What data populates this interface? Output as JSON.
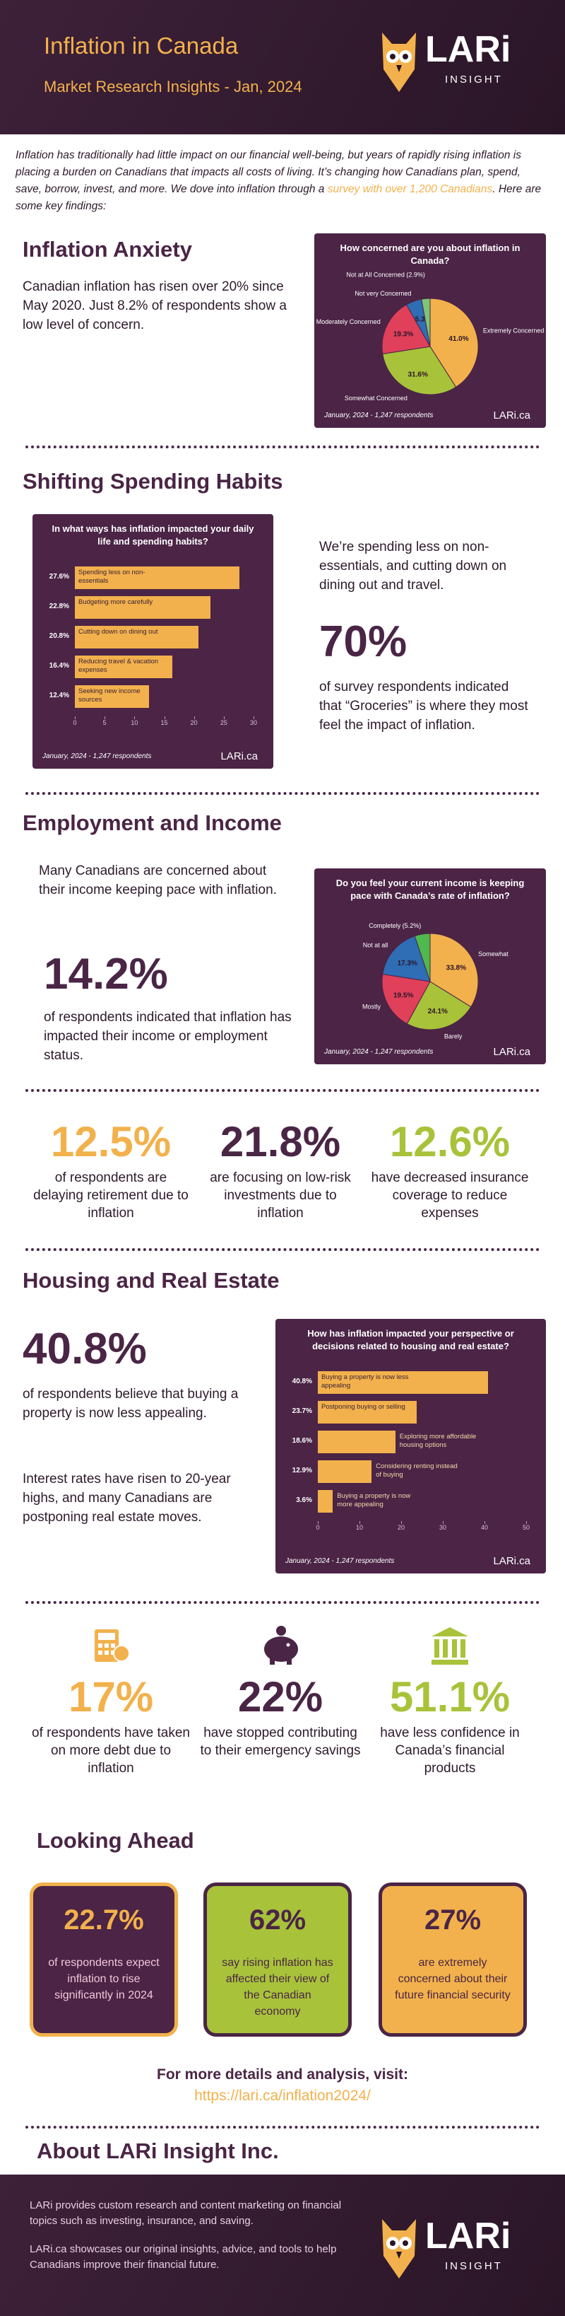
{
  "header": {
    "title": "Inflation in Canada",
    "subtitle": "Market Research Insights - Jan, 2024"
  },
  "logo": {
    "name": "LARi",
    "tag": "INSIGHT"
  },
  "intro": {
    "before": "Inflation has traditionally had little impact on our financial well-being, but years of rapidly rising inflation is placing a burden on Canadians that impacts all costs of living. It’s changing how Canadians plan, spend, save, borrow, invest, and more.  We dove into inflation through a ",
    "link": "survey with over 1,200 Canadians",
    "after": ". Here are some key findings:"
  },
  "anxiety": {
    "heading": "Inflation Anxiety",
    "text": "Canadian inflation has risen over 20% since May 2020. Just 8.2% of respondents show a low level of concern.",
    "chart": {
      "type": "pie",
      "title": "How concerned are you about inflation in Canada?",
      "categories": [
        "Extremely Concerned",
        "Somewhat Concerned",
        "Moderately Concerned",
        "Not very Concerned",
        "Not at All Concerned (2.9%)"
      ],
      "values": [
        41.0,
        31.6,
        19.3,
        5.3,
        2.9
      ],
      "value_labels": [
        "41.0%",
        "31.6%",
        "19.3%",
        "5.3",
        null
      ],
      "colors": [
        "#f2b14c",
        "#a8c23a",
        "#e0405a",
        "#2f6db5",
        "#7cc47a"
      ],
      "footnote": "January, 2024 - 1,247 respondents",
      "source": "LARi.ca"
    }
  },
  "spending": {
    "heading": "Shifting Spending Habits",
    "text": "We’re spending less on non-essentials, and cutting down on dining out and travel.",
    "stat": "70%",
    "stat_text": "of survey respondents indicated that “Groceries” is where they most feel the impact of inflation.",
    "chart": {
      "type": "barh",
      "title": "In what ways has inflation impacted your daily life and spending habits?",
      "categories": [
        "Spending less on non-essentials",
        "Budgeting more carefully",
        "Cutting down on dining out",
        "Reducing travel & vacation expenses",
        "Seeking new income sources"
      ],
      "values": [
        27.6,
        22.8,
        20.8,
        16.4,
        12.4
      ],
      "value_labels": [
        "27.6%",
        "22.8%",
        "20.8%",
        "16.4%",
        "12.4%"
      ],
      "color": "#f2b14c",
      "xlim": [
        0,
        30
      ],
      "xticks": [
        0,
        5,
        10,
        15,
        20,
        25,
        30
      ],
      "footnote": "January, 2024 - 1,247 respondents",
      "source": "LARi.ca"
    }
  },
  "employment": {
    "heading": "Employment and Income",
    "text": "Many Canadians are concerned about their income keeping pace with inflation.",
    "stat": "14.2%",
    "stat_text": "of respondents indicated that inflation has impacted their income or employment status.",
    "chart": {
      "type": "pie",
      "title": "Do you feel your current income is keeping pace with Canada’s rate of inflation?",
      "categories": [
        "Somewhat",
        "Barely",
        "Mostly",
        "Not at all",
        "Completely (5.2%)"
      ],
      "values": [
        33.8,
        24.1,
        19.5,
        17.3,
        5.2
      ],
      "value_labels": [
        "33.8%",
        "24.1%",
        "19.5%",
        "17.3%",
        null
      ],
      "colors": [
        "#f2b14c",
        "#a8c23a",
        "#e0405a",
        "#2f6db5",
        "#4fb84f"
      ],
      "footnote": "January, 2024 - 1,247 respondents",
      "source": "LARi.ca"
    },
    "stats": [
      {
        "value": "12.5%",
        "text": "of respondents are delaying retirement due to inflation"
      },
      {
        "value": "21.8%",
        "text": "are focusing on low-risk investments due to inflation"
      },
      {
        "value": "12.6%",
        "text": "have decreased insurance coverage to reduce expenses"
      }
    ]
  },
  "housing": {
    "heading": "Housing and Real Estate",
    "stat": "40.8%",
    "stat_text": "of respondents believe that buying a property is now less appealing.",
    "text": "Interest rates have risen to 20-year highs, and many Canadians are postponing real estate moves.",
    "chart": {
      "type": "barh",
      "title": "How has inflation impacted your perspective or decisions related to housing and real estate?",
      "categories": [
        "Buying a property is now less appealing",
        "Postponing buying or selling",
        "Exploring more affordable housing options",
        "Considering renting instead of buying",
        "Buying a property is now more appealing"
      ],
      "values": [
        40.8,
        23.7,
        18.6,
        12.9,
        3.6
      ],
      "value_labels": [
        "40.8%",
        "23.7%",
        "18.6%",
        "12.9%",
        "3.6%"
      ],
      "color": "#f2b14c",
      "xlim": [
        0,
        50
      ],
      "xticks": [
        0,
        10,
        20,
        30,
        40,
        50
      ],
      "footnote": "January, 2024 - 1,247 respondents",
      "source": "LARi.ca"
    },
    "stats": [
      {
        "value": "17%",
        "text": "of respondents have taken on more debt due to inflation"
      },
      {
        "value": "22%",
        "text": "have stopped contributing to their emergency savings"
      },
      {
        "value": "51.1%",
        "text": "have less confidence in Canada’s financial products"
      }
    ]
  },
  "ahead": {
    "heading": "Looking Ahead",
    "cards": [
      {
        "value": "22.7%",
        "text": "of respondents expect inflation to rise significantly in 2024"
      },
      {
        "value": "62%",
        "text": "say rising inflation has affected their view of the Canadian economy"
      },
      {
        "value": "27%",
        "text": "are extremely concerned about their future financial security"
      }
    ],
    "visit": "For more details and analysis, visit:",
    "url": "https://lari.ca/inflation2024/"
  },
  "about": {
    "heading": "About LARi Insight Inc.",
    "p1": "LARi provides custom research and content marketing on financial topics such as investing, insurance, and saving.",
    "p2": "LARi.ca showcases our original insights, advice, and tools to help Canadians improve their financial future."
  }
}
